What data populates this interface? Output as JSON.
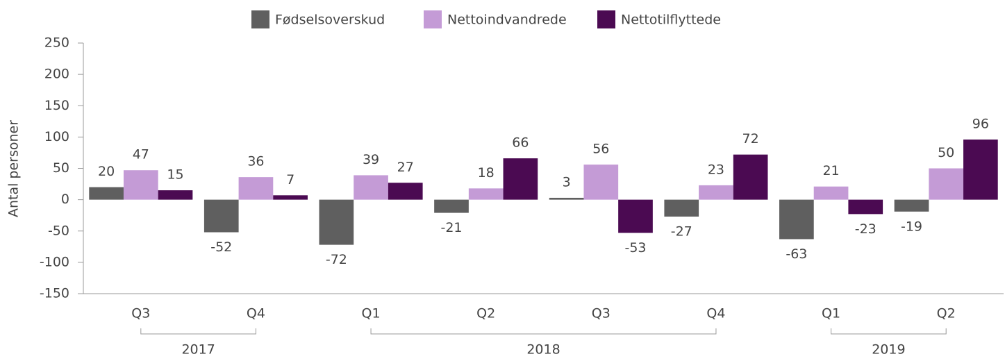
{
  "chart_data": {
    "type": "bar",
    "y_label": "Antal personer",
    "categories": [
      "Q3",
      "Q4",
      "Q1",
      "Q2",
      "Q3",
      "Q4",
      "Q1",
      "Q2"
    ],
    "groups": [
      {
        "label": "2017",
        "size": 2
      },
      {
        "label": "2018",
        "size": 4
      },
      {
        "label": "2019",
        "size": 2
      }
    ],
    "series": [
      {
        "name": "Fødselsoverskud",
        "color": "#5f5f5f",
        "values": [
          20,
          -52,
          -72,
          -21,
          3,
          -27,
          -63,
          -19
        ]
      },
      {
        "name": "Nettoindvandrede",
        "color": "#c49bd6",
        "values": [
          47,
          36,
          39,
          18,
          56,
          23,
          21,
          50
        ]
      },
      {
        "name": "Nettotilflyttede",
        "color": "#4b0a52",
        "values": [
          15,
          7,
          27,
          66,
          -53,
          72,
          -23,
          96
        ]
      }
    ],
    "ylim": [
      -150,
      250
    ],
    "yticks": [
      -150,
      -100,
      -50,
      0,
      50,
      100,
      150,
      200,
      250
    ],
    "legend": "top"
  }
}
